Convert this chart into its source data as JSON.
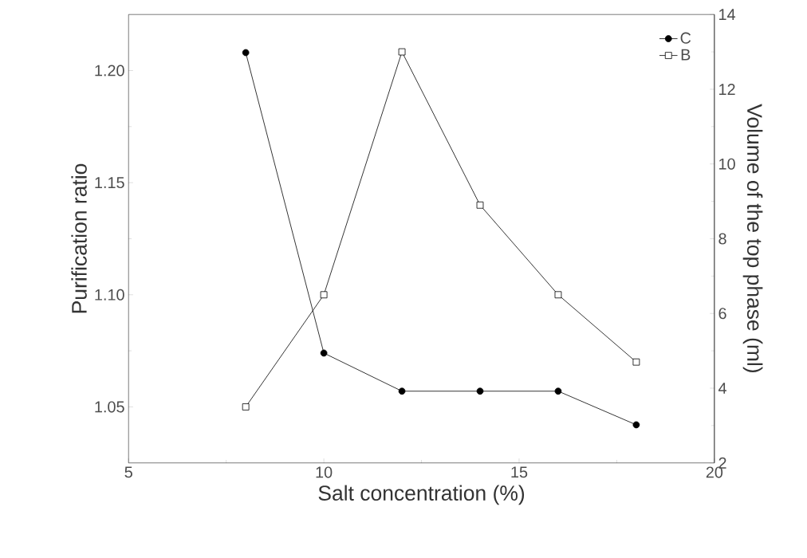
{
  "chart_data": {
    "type": "line",
    "xlabel": "Salt concentration (%)",
    "ylabel": "Purification ratio",
    "y2label": "Volume of the top phase (ml)",
    "x": [
      8,
      10,
      12,
      14,
      16,
      18
    ],
    "series": [
      {
        "name": "C",
        "color": "#000000",
        "marker": "circle",
        "values": [
          1.208,
          1.074,
          1.057,
          1.057,
          1.057,
          1.042
        ]
      },
      {
        "name": "B",
        "color": "#000000",
        "marker": "square",
        "axis": "y2",
        "values": [
          3.5,
          6.5,
          13.0,
          8.9,
          6.5,
          4.7
        ]
      }
    ],
    "xlim": [
      5,
      20
    ],
    "xticks": [
      5,
      10,
      15,
      20
    ],
    "ylim": [
      1.025,
      1.225
    ],
    "yticks": [
      {
        "value": 1.05,
        "label": "1.05"
      },
      {
        "value": 1.1,
        "label": "1.10"
      },
      {
        "value": 1.15,
        "label": "1.15"
      },
      {
        "value": 1.2,
        "label": "1.20"
      }
    ],
    "y2lim": [
      2,
      14
    ],
    "y2ticks": [
      2,
      4,
      6,
      8,
      10,
      12,
      14
    ],
    "legend": "top right",
    "line_style": "solid"
  }
}
